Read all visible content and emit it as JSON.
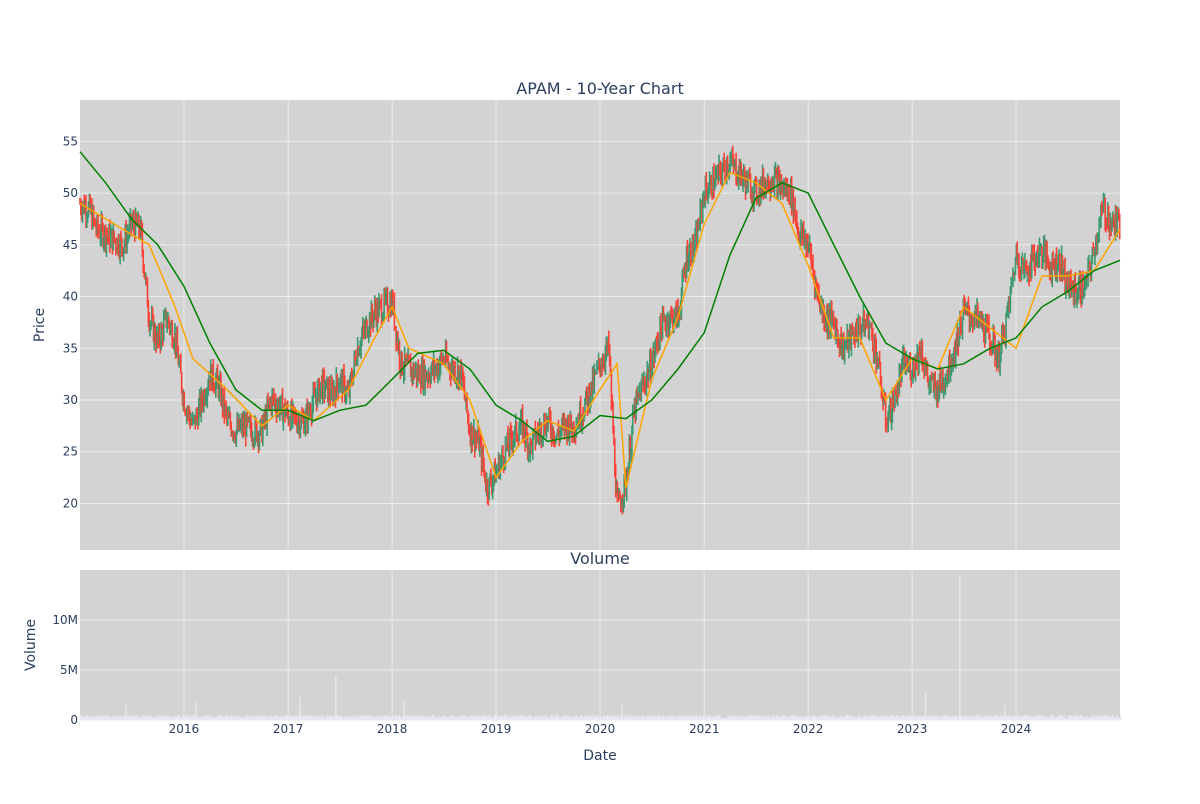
{
  "chart_data": [
    {
      "type": "candlestick",
      "title": "APAM - 10-Year Chart",
      "ylabel": "Price",
      "ylim": [
        15.5,
        59
      ],
      "yticks": [
        20,
        25,
        30,
        35,
        40,
        45,
        50,
        55
      ],
      "grid": true,
      "colors": {
        "background": "#d3d3d3",
        "grid": "#ebebeb",
        "up": "#3d9970",
        "down": "#ff4136",
        "ma_short": "#ffa500",
        "ma_long": "#008000"
      },
      "series": [
        {
          "name": "",
          "kind": "ohlc-close-path",
          "x": [
            "2015-01-01",
            "2015-02-01",
            "2015-03-01",
            "2015-04-01",
            "2015-05-01",
            "2015-06-01",
            "2015-07-01",
            "2015-08-01",
            "2015-09-01",
            "2015-10-01",
            "2015-11-01",
            "2015-12-01",
            "2016-01-01",
            "2016-02-01",
            "2016-03-01",
            "2016-04-01",
            "2016-05-01",
            "2016-06-01",
            "2016-07-01",
            "2016-08-01",
            "2016-09-01",
            "2016-10-01",
            "2016-11-01",
            "2016-12-01",
            "2017-01-01",
            "2017-02-01",
            "2017-03-01",
            "2017-04-01",
            "2017-05-01",
            "2017-06-01",
            "2017-07-01",
            "2017-08-01",
            "2017-09-01",
            "2017-10-01",
            "2017-11-01",
            "2017-12-01",
            "2018-01-01",
            "2018-02-01",
            "2018-03-01",
            "2018-04-01",
            "2018-05-01",
            "2018-06-01",
            "2018-07-01",
            "2018-08-01",
            "2018-09-01",
            "2018-10-01",
            "2018-11-01",
            "2018-12-01",
            "2019-01-01",
            "2019-02-01",
            "2019-03-01",
            "2019-04-01",
            "2019-05-01",
            "2019-06-01",
            "2019-07-01",
            "2019-08-01",
            "2019-09-01",
            "2019-10-01",
            "2019-11-01",
            "2019-12-01",
            "2020-01-01",
            "2020-02-01",
            "2020-03-01",
            "2020-04-01",
            "2020-05-01",
            "2020-06-01",
            "2020-07-01",
            "2020-08-01",
            "2020-09-01",
            "2020-10-01",
            "2020-11-01",
            "2020-12-01",
            "2021-01-01",
            "2021-02-01",
            "2021-03-01",
            "2021-04-01",
            "2021-05-01",
            "2021-06-01",
            "2021-07-01",
            "2021-08-01",
            "2021-09-01",
            "2021-10-01",
            "2021-11-01",
            "2021-12-01",
            "2022-01-01",
            "2022-02-01",
            "2022-03-01",
            "2022-04-01",
            "2022-05-01",
            "2022-06-01",
            "2022-07-01",
            "2022-08-01",
            "2022-09-01",
            "2022-10-01",
            "2022-11-01",
            "2022-12-01",
            "2023-01-01",
            "2023-02-01",
            "2023-03-01",
            "2023-04-01",
            "2023-05-01",
            "2023-06-01",
            "2023-07-01",
            "2023-08-01",
            "2023-09-01",
            "2023-10-01",
            "2023-11-01",
            "2023-12-01",
            "2024-01-01",
            "2024-02-01",
            "2024-03-01",
            "2024-04-01",
            "2024-05-01",
            "2024-06-01",
            "2024-07-01",
            "2024-08-01",
            "2024-09-01",
            "2024-10-01",
            "2024-11-01",
            "2024-12-01"
          ],
          "close": [
            49,
            48.5,
            46.5,
            46,
            45.5,
            45,
            47,
            46.5,
            38,
            35.5,
            38,
            36,
            30,
            27.5,
            29.5,
            32.5,
            31.5,
            28,
            27,
            27.5,
            27,
            27,
            30,
            29.5,
            28.5,
            28,
            28,
            30,
            31.5,
            30.5,
            32,
            30.5,
            35,
            37,
            38.5,
            39,
            39.5,
            33.5,
            33,
            32.5,
            32.5,
            33,
            34,
            33,
            32.5,
            27,
            26,
            21.5,
            23,
            25,
            26.5,
            27.5,
            25.5,
            27,
            28,
            26.5,
            27.5,
            27.5,
            29,
            31,
            33.5,
            35,
            19.5,
            22,
            29,
            31.5,
            33.5,
            37,
            38,
            38,
            44,
            45,
            50,
            51,
            52,
            53,
            52,
            51,
            50,
            51,
            51.5,
            50.5,
            50,
            46,
            45,
            40.5,
            38,
            37.5,
            35,
            36,
            37,
            37.5,
            34,
            28,
            30,
            33.5,
            33,
            35,
            31.5,
            31,
            32.5,
            35,
            38.5,
            38,
            37.5,
            36,
            34,
            38,
            44,
            42.5,
            43.5,
            44.5,
            43,
            43.5,
            41,
            40.5,
            41,
            44.5,
            48.5,
            47
          ]
        },
        {
          "name": "",
          "kind": "moving-average-short",
          "x": [
            "2015-01-01",
            "2015-07-01",
            "2015-09-01",
            "2015-12-01",
            "2016-02-01",
            "2016-06-01",
            "2016-10-01",
            "2017-01-01",
            "2017-04-01",
            "2017-08-01",
            "2017-11-01",
            "2018-01-01",
            "2018-03-01",
            "2018-07-01",
            "2018-10-01",
            "2019-01-01",
            "2019-04-01",
            "2019-07-01",
            "2019-10-01",
            "2020-01-01",
            "2020-03-01",
            "2020-04-01",
            "2020-07-01",
            "2020-10-01",
            "2021-01-01",
            "2021-04-01",
            "2021-07-01",
            "2021-10-01",
            "2022-01-01",
            "2022-04-01",
            "2022-07-01",
            "2022-10-01",
            "2023-01-01",
            "2023-04-01",
            "2023-07-01",
            "2023-10-01",
            "2024-01-01",
            "2024-04-01",
            "2024-07-01",
            "2024-10-01",
            "2024-12-31"
          ],
          "values": [
            49,
            46,
            45,
            39,
            34,
            31,
            27.5,
            29.5,
            28,
            31,
            36,
            39,
            35,
            33.5,
            30,
            22.5,
            26,
            28,
            27,
            31,
            33.5,
            21.5,
            32,
            38,
            47,
            52,
            51,
            49,
            43,
            36,
            36,
            30,
            34,
            33,
            39,
            37,
            35,
            42,
            42,
            42.5,
            46.5
          ]
        },
        {
          "name": "",
          "kind": "moving-average-long",
          "x": [
            "2015-01-01",
            "2015-04-01",
            "2015-07-01",
            "2015-10-01",
            "2016-01-01",
            "2016-04-01",
            "2016-07-01",
            "2016-10-01",
            "2017-01-01",
            "2017-04-01",
            "2017-07-01",
            "2017-10-01",
            "2018-01-01",
            "2018-04-01",
            "2018-07-01",
            "2018-10-01",
            "2019-01-01",
            "2019-04-01",
            "2019-07-01",
            "2019-10-01",
            "2020-01-01",
            "2020-04-01",
            "2020-07-01",
            "2020-10-01",
            "2021-01-01",
            "2021-04-01",
            "2021-07-01",
            "2021-10-01",
            "2022-01-01",
            "2022-04-01",
            "2022-07-01",
            "2022-10-01",
            "2023-01-01",
            "2023-04-01",
            "2023-07-01",
            "2023-10-01",
            "2024-01-01",
            "2024-04-01",
            "2024-07-01",
            "2024-10-01",
            "2024-12-31"
          ],
          "values": [
            54,
            51,
            47.5,
            45,
            41,
            35.5,
            31,
            29,
            29,
            28,
            29,
            29.5,
            32,
            34.5,
            34.8,
            33,
            29.5,
            28,
            26,
            26.5,
            28.5,
            28.2,
            30,
            33,
            36.5,
            44,
            49.5,
            51,
            50,
            45,
            40,
            35.5,
            34,
            33,
            33.5,
            35,
            36,
            39,
            40.5,
            42.5,
            43.5
          ]
        }
      ]
    },
    {
      "type": "bar",
      "title": "Volume",
      "ylabel": "Volume",
      "xlabel": "Date",
      "ylim": [
        0,
        15000000
      ],
      "yticks": [
        0,
        5000000,
        10000000
      ],
      "ytick_labels": [
        "0",
        "5M",
        "10M"
      ],
      "xlim": [
        "2015-01-01",
        "2024-12-31"
      ],
      "xticks": [
        "2016-01-01",
        "2017-01-01",
        "2018-01-01",
        "2019-01-01",
        "2020-01-01",
        "2021-01-01",
        "2022-01-01",
        "2023-01-01",
        "2024-01-01"
      ],
      "xtick_labels": [
        "2016",
        "2017",
        "2018",
        "2019",
        "2020",
        "2021",
        "2022",
        "2023",
        "2024"
      ],
      "grid": true,
      "colors": {
        "bar": "#e8e8f4"
      },
      "series": [
        {
          "name": "",
          "baseline": 350000,
          "spikes": [
            {
              "x": "2015-06-10",
              "value": 1500000
            },
            {
              "x": "2016-02-10",
              "value": 1800000
            },
            {
              "x": "2017-02-10",
              "value": 2300000
            },
            {
              "x": "2017-06-15",
              "value": 4400000
            },
            {
              "x": "2018-02-10",
              "value": 1900000
            },
            {
              "x": "2020-03-15",
              "value": 1500000
            },
            {
              "x": "2023-02-15",
              "value": 2700000
            },
            {
              "x": "2023-06-15",
              "value": 14500000
            },
            {
              "x": "2023-11-20",
              "value": 1500000
            }
          ]
        }
      ]
    }
  ]
}
